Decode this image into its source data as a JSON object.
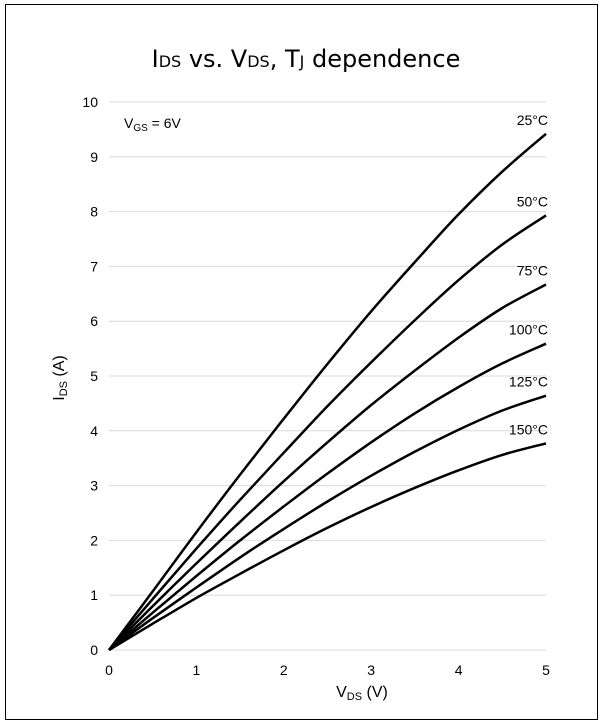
{
  "chart_data": {
    "type": "line",
    "title": {
      "main": "I",
      "sub1": "DS",
      "mid1": " vs. V",
      "sub2": "DS",
      "mid2": ", T",
      "sub3": "J",
      "end": " dependence"
    },
    "xlabel": {
      "main": "V",
      "sub": "DS",
      "unit": " (V)"
    },
    "ylabel": {
      "main": "I",
      "sub": "DS",
      "unit": " (A)"
    },
    "annotation": {
      "main": "V",
      "sub": "GS",
      "end": " = 6V"
    },
    "xlim": [
      0,
      5
    ],
    "ylim": [
      0,
      10
    ],
    "xticks": [
      "0",
      "1",
      "2",
      "3",
      "4",
      "5"
    ],
    "yticks": [
      "0",
      "1",
      "2",
      "3",
      "4",
      "5",
      "6",
      "7",
      "8",
      "9",
      "10"
    ],
    "grid": "horizontal",
    "line_color": "#000000",
    "grid_color": "#d9d9d9",
    "x": [
      0,
      0.5,
      1,
      1.5,
      2,
      2.5,
      3,
      3.5,
      4,
      4.5,
      5
    ],
    "series": [
      {
        "name": "25°C",
        "values": [
          0,
          1.07,
          2.15,
          3.2,
          4.22,
          5.22,
          6.18,
          7.08,
          7.95,
          8.73,
          9.42
        ]
      },
      {
        "name": "50°C",
        "values": [
          0,
          0.93,
          1.85,
          2.74,
          3.6,
          4.45,
          5.25,
          6.02,
          6.75,
          7.4,
          7.93
        ]
      },
      {
        "name": "75°C",
        "values": [
          0,
          0.8,
          1.58,
          2.34,
          3.08,
          3.79,
          4.47,
          5.1,
          5.7,
          6.24,
          6.67
        ]
      },
      {
        "name": "100°C",
        "values": [
          0,
          0.68,
          1.35,
          2.0,
          2.62,
          3.22,
          3.79,
          4.32,
          4.8,
          5.23,
          5.59
        ]
      },
      {
        "name": "125°C",
        "values": [
          0,
          0.58,
          1.14,
          1.69,
          2.21,
          2.71,
          3.18,
          3.62,
          4.02,
          4.37,
          4.64
        ]
      },
      {
        "name": "150°C",
        "values": [
          0,
          0.48,
          0.95,
          1.39,
          1.82,
          2.23,
          2.61,
          2.96,
          3.28,
          3.56,
          3.77
        ]
      }
    ]
  }
}
